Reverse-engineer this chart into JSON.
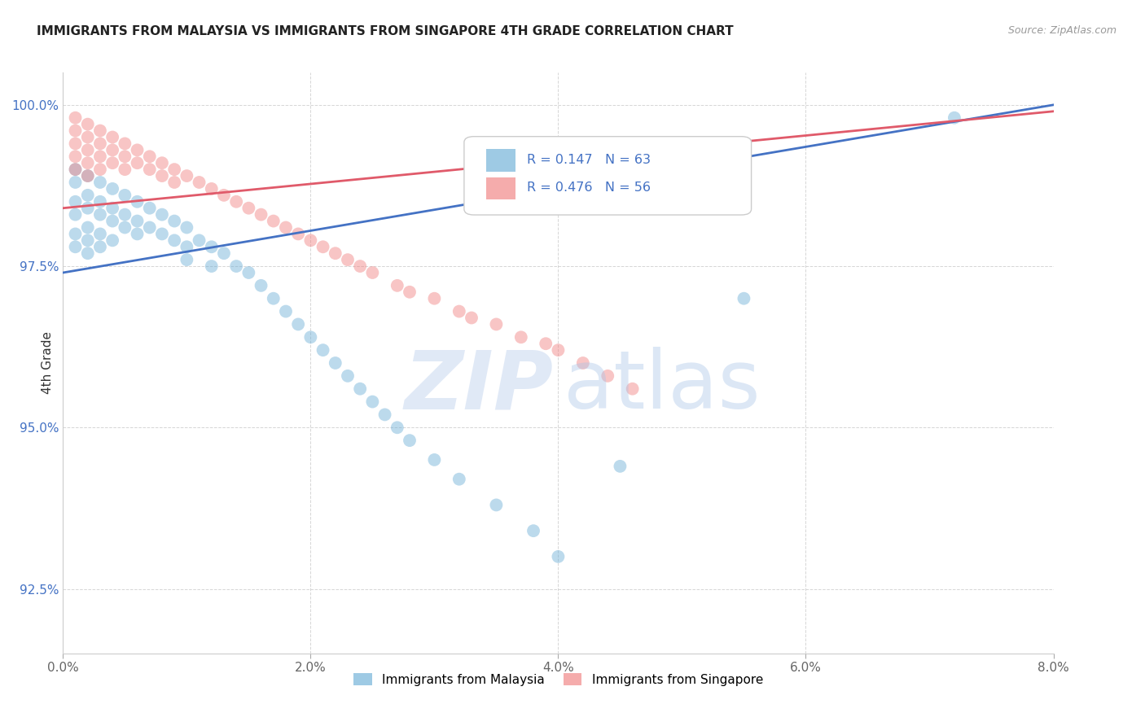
{
  "title": "IMMIGRANTS FROM MALAYSIA VS IMMIGRANTS FROM SINGAPORE 4TH GRADE CORRELATION CHART",
  "source": "Source: ZipAtlas.com",
  "ylabel": "4th Grade",
  "xlim": [
    0.0,
    0.08
  ],
  "ylim": [
    0.915,
    1.005
  ],
  "xtick_labels": [
    "0.0%",
    "2.0%",
    "4.0%",
    "6.0%",
    "8.0%"
  ],
  "xtick_positions": [
    0.0,
    0.02,
    0.04,
    0.06,
    0.08
  ],
  "ytick_labels": [
    "92.5%",
    "95.0%",
    "97.5%",
    "100.0%"
  ],
  "ytick_positions": [
    0.925,
    0.95,
    0.975,
    1.0
  ],
  "malaysia_color": "#6baed6",
  "singapore_color": "#f08080",
  "malaysia_line_color": "#4472c4",
  "singapore_line_color": "#e05a6a",
  "malaysia_R": 0.147,
  "malaysia_N": 63,
  "singapore_R": 0.476,
  "singapore_N": 56,
  "legend_label_malaysia": "Immigrants from Malaysia",
  "legend_label_singapore": "Immigrants from Singapore",
  "malaysia_x": [
    0.001,
    0.001,
    0.001,
    0.001,
    0.001,
    0.001,
    0.002,
    0.002,
    0.002,
    0.002,
    0.002,
    0.002,
    0.003,
    0.003,
    0.003,
    0.003,
    0.003,
    0.004,
    0.004,
    0.004,
    0.004,
    0.005,
    0.005,
    0.005,
    0.006,
    0.006,
    0.006,
    0.007,
    0.007,
    0.008,
    0.008,
    0.009,
    0.009,
    0.01,
    0.01,
    0.01,
    0.011,
    0.012,
    0.012,
    0.013,
    0.014,
    0.015,
    0.016,
    0.017,
    0.018,
    0.019,
    0.02,
    0.021,
    0.022,
    0.023,
    0.024,
    0.025,
    0.026,
    0.027,
    0.028,
    0.03,
    0.032,
    0.035,
    0.038,
    0.04,
    0.045,
    0.055,
    0.072
  ],
  "malaysia_y": [
    0.99,
    0.988,
    0.985,
    0.983,
    0.98,
    0.978,
    0.989,
    0.986,
    0.984,
    0.981,
    0.979,
    0.977,
    0.988,
    0.985,
    0.983,
    0.98,
    0.978,
    0.987,
    0.984,
    0.982,
    0.979,
    0.986,
    0.983,
    0.981,
    0.985,
    0.982,
    0.98,
    0.984,
    0.981,
    0.983,
    0.98,
    0.982,
    0.979,
    0.981,
    0.978,
    0.976,
    0.979,
    0.978,
    0.975,
    0.977,
    0.975,
    0.974,
    0.972,
    0.97,
    0.968,
    0.966,
    0.964,
    0.962,
    0.96,
    0.958,
    0.956,
    0.954,
    0.952,
    0.95,
    0.948,
    0.945,
    0.942,
    0.938,
    0.934,
    0.93,
    0.944,
    0.97,
    0.998
  ],
  "singapore_x": [
    0.001,
    0.001,
    0.001,
    0.001,
    0.001,
    0.002,
    0.002,
    0.002,
    0.002,
    0.002,
    0.003,
    0.003,
    0.003,
    0.003,
    0.004,
    0.004,
    0.004,
    0.005,
    0.005,
    0.005,
    0.006,
    0.006,
    0.007,
    0.007,
    0.008,
    0.008,
    0.009,
    0.009,
    0.01,
    0.011,
    0.012,
    0.013,
    0.014,
    0.015,
    0.016,
    0.017,
    0.018,
    0.019,
    0.02,
    0.021,
    0.022,
    0.023,
    0.024,
    0.025,
    0.027,
    0.028,
    0.03,
    0.032,
    0.033,
    0.035,
    0.037,
    0.039,
    0.04,
    0.042,
    0.044,
    0.046
  ],
  "singapore_y": [
    0.998,
    0.996,
    0.994,
    0.992,
    0.99,
    0.997,
    0.995,
    0.993,
    0.991,
    0.989,
    0.996,
    0.994,
    0.992,
    0.99,
    0.995,
    0.993,
    0.991,
    0.994,
    0.992,
    0.99,
    0.993,
    0.991,
    0.992,
    0.99,
    0.991,
    0.989,
    0.99,
    0.988,
    0.989,
    0.988,
    0.987,
    0.986,
    0.985,
    0.984,
    0.983,
    0.982,
    0.981,
    0.98,
    0.979,
    0.978,
    0.977,
    0.976,
    0.975,
    0.974,
    0.972,
    0.971,
    0.97,
    0.968,
    0.967,
    0.966,
    0.964,
    0.963,
    0.962,
    0.96,
    0.958,
    0.956
  ],
  "background_color": "#ffffff",
  "grid_color": "#cccccc",
  "watermark_zip_color": "#c8d8f0",
  "watermark_atlas_color": "#a8c4e8"
}
